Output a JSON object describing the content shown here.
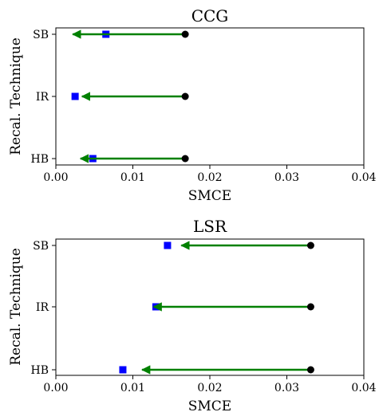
{
  "chart_data": [
    {
      "type": "scatter",
      "title": "CCG",
      "xlabel": "SMCE",
      "ylabel": "Recal. Technique",
      "xlim": [
        0.0,
        0.04
      ],
      "xticks": [
        "0.00",
        "0.01",
        "0.02",
        "0.03",
        "0.04"
      ],
      "xtick_values": [
        0.0,
        0.01,
        0.02,
        0.03,
        0.04
      ],
      "categories": [
        "SB",
        "IR",
        "HB"
      ],
      "series": [
        {
          "name": "",
          "marker": "circle",
          "color": "#000000",
          "values": [
            0.0168,
            0.0168,
            0.0168
          ]
        },
        {
          "name": "",
          "marker": "square",
          "color": "#0000ff",
          "values": [
            0.0065,
            0.0025,
            0.0048
          ]
        },
        {
          "name": "",
          "marker": "arrow",
          "color": "#008000",
          "from": [
            0.0168,
            0.0168,
            0.0168
          ],
          "to": [
            0.0022,
            0.0034,
            0.0032
          ]
        }
      ]
    },
    {
      "type": "scatter",
      "title": "LSR",
      "xlabel": "SMCE",
      "ylabel": "Recal. Technique",
      "xlim": [
        0.0,
        0.04
      ],
      "xticks": [
        "0.00",
        "0.01",
        "0.02",
        "0.03",
        "0.04"
      ],
      "xtick_values": [
        0.0,
        0.01,
        0.02,
        0.03,
        0.04
      ],
      "categories": [
        "SB",
        "IR",
        "HB"
      ],
      "series": [
        {
          "name": "",
          "marker": "circle",
          "color": "#000000",
          "values": [
            0.0331,
            0.0331,
            0.0331
          ]
        },
        {
          "name": "",
          "marker": "square",
          "color": "#0000ff",
          "values": [
            0.0145,
            0.013,
            0.0087
          ]
        },
        {
          "name": "",
          "marker": "arrow",
          "color": "#008000",
          "from": [
            0.0331,
            0.0331,
            0.0331
          ],
          "to": [
            0.0163,
            0.0127,
            0.0112
          ]
        }
      ]
    }
  ]
}
